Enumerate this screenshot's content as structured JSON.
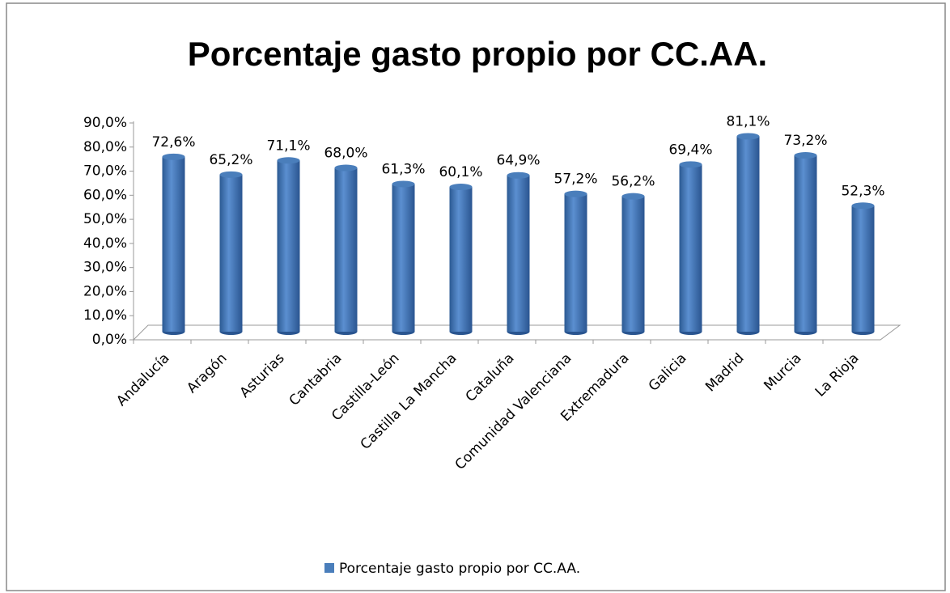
{
  "chart_data": {
    "type": "bar",
    "title": "Porcentaje gasto propio por CC.AA.",
    "categories": [
      "Andalucía",
      "Aragón",
      "Asturias",
      "Cantabria",
      "Castilla-León",
      "Castilla La Mancha",
      "Cataluña",
      "Comunidad Valenciana",
      "Extremadura",
      "Galicia",
      "Madrid",
      "Murcia",
      "La Rioja"
    ],
    "series": [
      {
        "name": "Porcentaje gasto propio por CC.AA.",
        "color": "#4a7ebb",
        "values": [
          72.6,
          65.2,
          71.1,
          68.0,
          61.3,
          60.1,
          64.9,
          57.2,
          56.2,
          69.4,
          81.1,
          73.2,
          52.3
        ],
        "value_labels": [
          "72,6%",
          "65,2%",
          "71,1%",
          "68,0%",
          "61,3%",
          "60,1%",
          "64,9%",
          "57,2%",
          "56,2%",
          "69,4%",
          "81,1%",
          "73,2%",
          "52,3%"
        ]
      }
    ],
    "ylim": [
      0,
      90
    ],
    "yticks": [
      {
        "value": 0,
        "label": "0,0%"
      },
      {
        "value": 10,
        "label": "10,0%"
      },
      {
        "value": 20,
        "label": "20,0%"
      },
      {
        "value": 30,
        "label": "30,0%"
      },
      {
        "value": 40,
        "label": "40,0%"
      },
      {
        "value": 50,
        "label": "50,0%"
      },
      {
        "value": 60,
        "label": "60,0%"
      },
      {
        "value": 70,
        "label": "70,0%"
      },
      {
        "value": 80,
        "label": "80,0%"
      },
      {
        "value": 90,
        "label": "90,0%"
      }
    ],
    "legend": "bottom"
  }
}
